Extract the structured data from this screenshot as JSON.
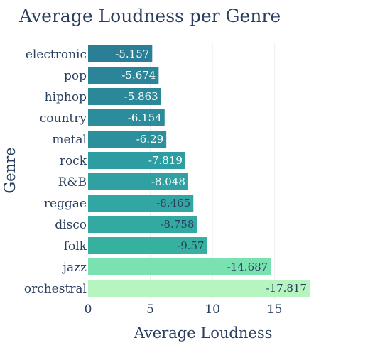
{
  "chart_data": {
    "type": "bar",
    "orientation": "horizontal",
    "title": "Average Loudness per Genre",
    "xlabel": "Average Loudness",
    "ylabel": "Genre",
    "xlim": [
      0,
      18.5
    ],
    "xticks": [
      0,
      5,
      10,
      15
    ],
    "grid": "vertical",
    "legend": "none",
    "categories": [
      "electronic",
      "pop",
      "hiphop",
      "country",
      "metal",
      "rock",
      "R&B",
      "reggae",
      "disco",
      "folk",
      "jazz",
      "orchestral"
    ],
    "values": [
      5.157,
      5.674,
      5.863,
      6.154,
      6.29,
      7.819,
      8.048,
      8.465,
      8.758,
      9.57,
      14.687,
      17.817
    ],
    "data_labels": [
      "-5.157",
      "-5.674",
      "-5.863",
      "-6.154",
      "-6.29",
      "-7.819",
      "-8.048",
      "-8.465",
      "-8.758",
      "-9.57",
      "-14.687",
      "-17.817"
    ],
    "colors": [
      "#2a7f97",
      "#2a8598",
      "#2b8899",
      "#2b8c9b",
      "#2b909c",
      "#2e9da1",
      "#2fa1a2",
      "#31a6a2",
      "#32aaa2",
      "#36b09f",
      "#7ae2b0",
      "#b6f5c0"
    ],
    "label_colors": [
      "#ffffff",
      "#ffffff",
      "#ffffff",
      "#ffffff",
      "#ffffff",
      "#ffffff",
      "#ffffff",
      "#2a3f5f",
      "#2a3f5f",
      "#2a3f5f",
      "#2a3f5f",
      "#2a3f5f"
    ]
  }
}
